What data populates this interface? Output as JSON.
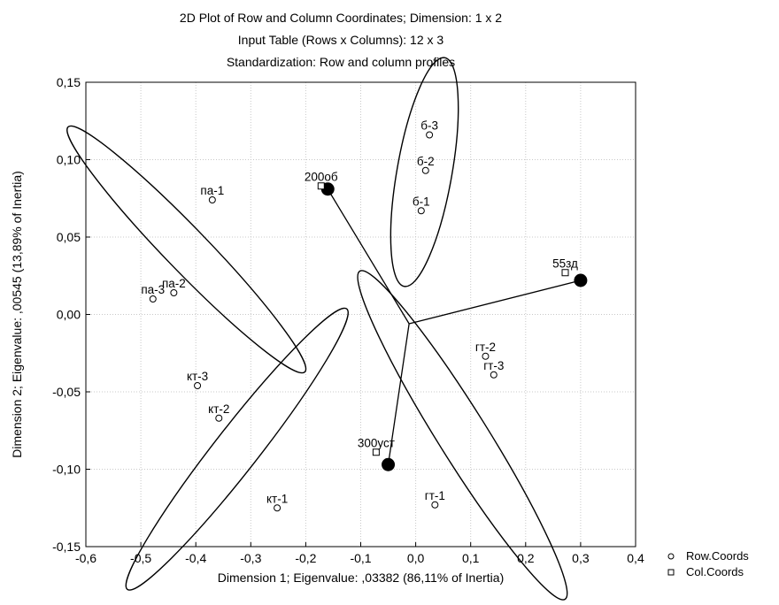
{
  "chart_data": {
    "type": "scatter",
    "title": [
      "2D Plot of Row and Column Coordinates; Dimension:  1 x  2",
      "Input Table (Rows x Columns): 12 x 3",
      "Standardization: Row and column profiles"
    ],
    "xlabel": "Dimension 1; Eigenvalue: ,03382 (86,11% of Inertia)",
    "ylabel": "Dimension 2; Eigenvalue: ,00545 (13,89% of Inertia)",
    "xlim": [
      -0.6,
      0.4
    ],
    "ylim": [
      -0.15,
      0.15
    ],
    "x_ticks": [
      -0.6,
      -0.5,
      -0.4,
      -0.3,
      -0.2,
      -0.1,
      0.0,
      0.1,
      0.2,
      0.3,
      0.4
    ],
    "x_tick_labels": [
      "-0,6",
      "-0,5",
      "-0,4",
      "-0,3",
      "-0,2",
      "-0,1",
      "0,0",
      "0,1",
      "0,2",
      "0,3",
      "0,4"
    ],
    "y_ticks": [
      -0.15,
      -0.1,
      -0.05,
      0.0,
      0.05,
      0.1,
      0.15
    ],
    "y_tick_labels": [
      "-0,15",
      "-0,10",
      "-0,05",
      "0,00",
      "0,05",
      "0,10",
      "0,15"
    ],
    "grid": true,
    "legend_position": "bottom-right",
    "series": [
      {
        "name": "Row.Coords",
        "marker": "circle",
        "points": [
          {
            "label": "б-3",
            "x": 0.025,
            "y": 0.116
          },
          {
            "label": "б-2",
            "x": 0.018,
            "y": 0.093
          },
          {
            "label": "б-1",
            "x": 0.01,
            "y": 0.067
          },
          {
            "label": "па-1",
            "x": -0.37,
            "y": 0.074
          },
          {
            "label": "па-2",
            "x": -0.44,
            "y": 0.014
          },
          {
            "label": "па-3",
            "x": -0.478,
            "y": 0.01
          },
          {
            "label": "кт-3",
            "x": -0.397,
            "y": -0.046
          },
          {
            "label": "кт-2",
            "x": -0.358,
            "y": -0.067
          },
          {
            "label": "кт-1",
            "x": -0.252,
            "y": -0.125
          },
          {
            "label": "гт-2",
            "x": 0.127,
            "y": -0.027
          },
          {
            "label": "гт-3",
            "x": 0.142,
            "y": -0.039
          },
          {
            "label": "гт-1",
            "x": 0.035,
            "y": -0.123
          }
        ]
      },
      {
        "name": "Col.Coords",
        "marker": "square",
        "points": [
          {
            "label": "200об",
            "x": -0.172,
            "y": 0.083
          },
          {
            "label": "55зд",
            "x": 0.272,
            "y": 0.027
          },
          {
            "label": "300уст",
            "x": -0.072,
            "y": -0.089
          }
        ]
      }
    ],
    "annotations": {
      "hub": {
        "x": -0.012,
        "y": -0.006
      },
      "spoke_ends": [
        {
          "x": -0.16,
          "y": 0.081
        },
        {
          "x": 0.3,
          "y": 0.022
        },
        {
          "x": -0.05,
          "y": -0.097
        }
      ],
      "ellipses": [
        {
          "group": "б",
          "cx": 0.016,
          "cy": 0.092,
          "rx": 0.05,
          "ry": 0.075,
          "angle": 10
        },
        {
          "group": "па",
          "cx": -0.417,
          "cy": 0.042,
          "rx": 0.039,
          "ry": 0.11,
          "angle": -44
        },
        {
          "group": "кт",
          "cx": -0.325,
          "cy": -0.087,
          "rx": 0.04,
          "ry": 0.115,
          "angle": 38
        },
        {
          "group": "гт",
          "cx": 0.085,
          "cy": -0.078,
          "rx": 0.045,
          "ry": 0.125,
          "angle": -32
        }
      ]
    }
  }
}
